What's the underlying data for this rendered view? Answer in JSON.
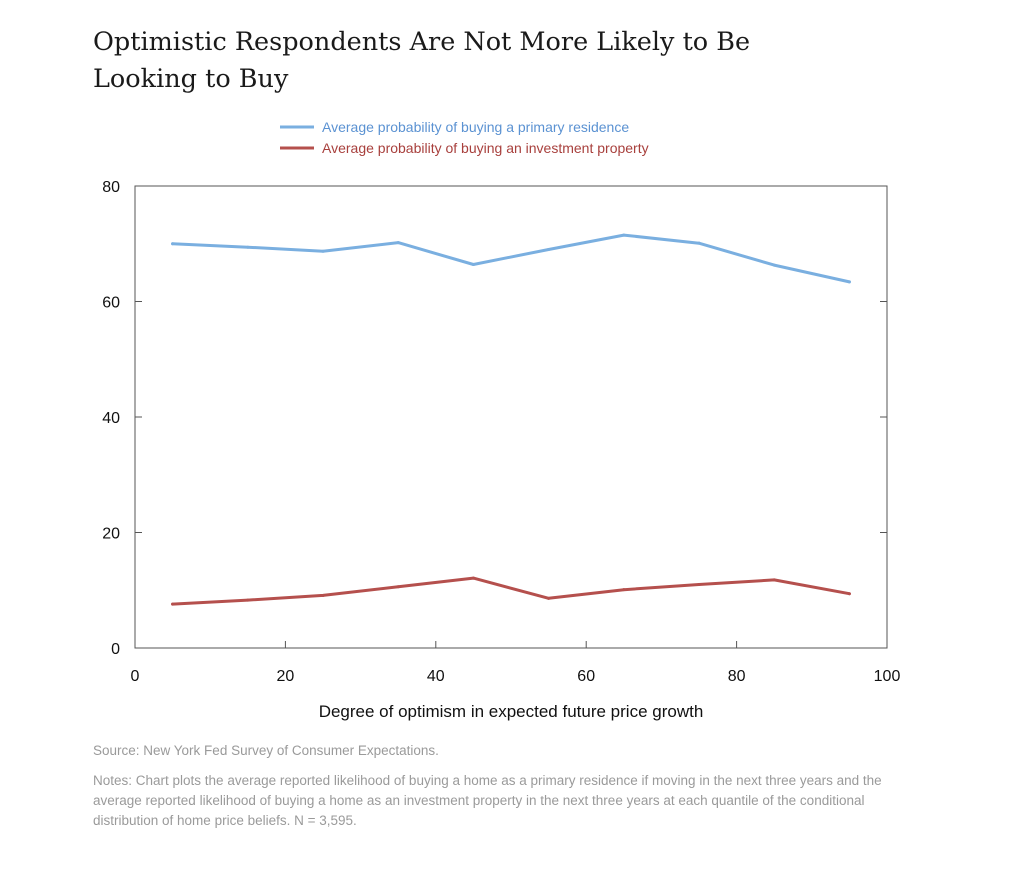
{
  "chart_data": {
    "type": "line",
    "title": "Optimistic Respondents Are Not More Likely to Be Looking to Buy",
    "xlabel": "Degree of optimism in expected future price growth",
    "ylabel": "",
    "xlim": [
      0,
      100
    ],
    "ylim": [
      0,
      80
    ],
    "xticks": [
      0,
      20,
      40,
      60,
      80,
      100
    ],
    "yticks": [
      0,
      20,
      40,
      60,
      80
    ],
    "grid": false,
    "legend_position": "top",
    "x": [
      5,
      15,
      25,
      35,
      45,
      55,
      65,
      75,
      85,
      95
    ],
    "series": [
      {
        "name": "Average probability of buying a primary residence",
        "color": "#7aafe0",
        "label_color": "#5b92d2",
        "values": [
          70.0,
          69.4,
          68.7,
          70.2,
          66.4,
          69.0,
          71.5,
          70.1,
          66.3,
          63.4
        ]
      },
      {
        "name": "Average probability of buying an investment property",
        "color": "#b5504d",
        "label_color": "#a8403d",
        "values": [
          7.6,
          8.3,
          9.1,
          10.6,
          12.1,
          8.6,
          10.1,
          11.0,
          11.8,
          9.4
        ]
      }
    ]
  },
  "footer": {
    "source": "Source: New York Fed Survey of Consumer Expectations.",
    "notes": "Notes: Chart plots the average reported likelihood of buying a home as a primary residence if moving in the next three years and the average reported likelihood of buying a home as an investment property in the next three years at each quantile of the conditional distribution of home price beliefs. N = 3,595."
  }
}
